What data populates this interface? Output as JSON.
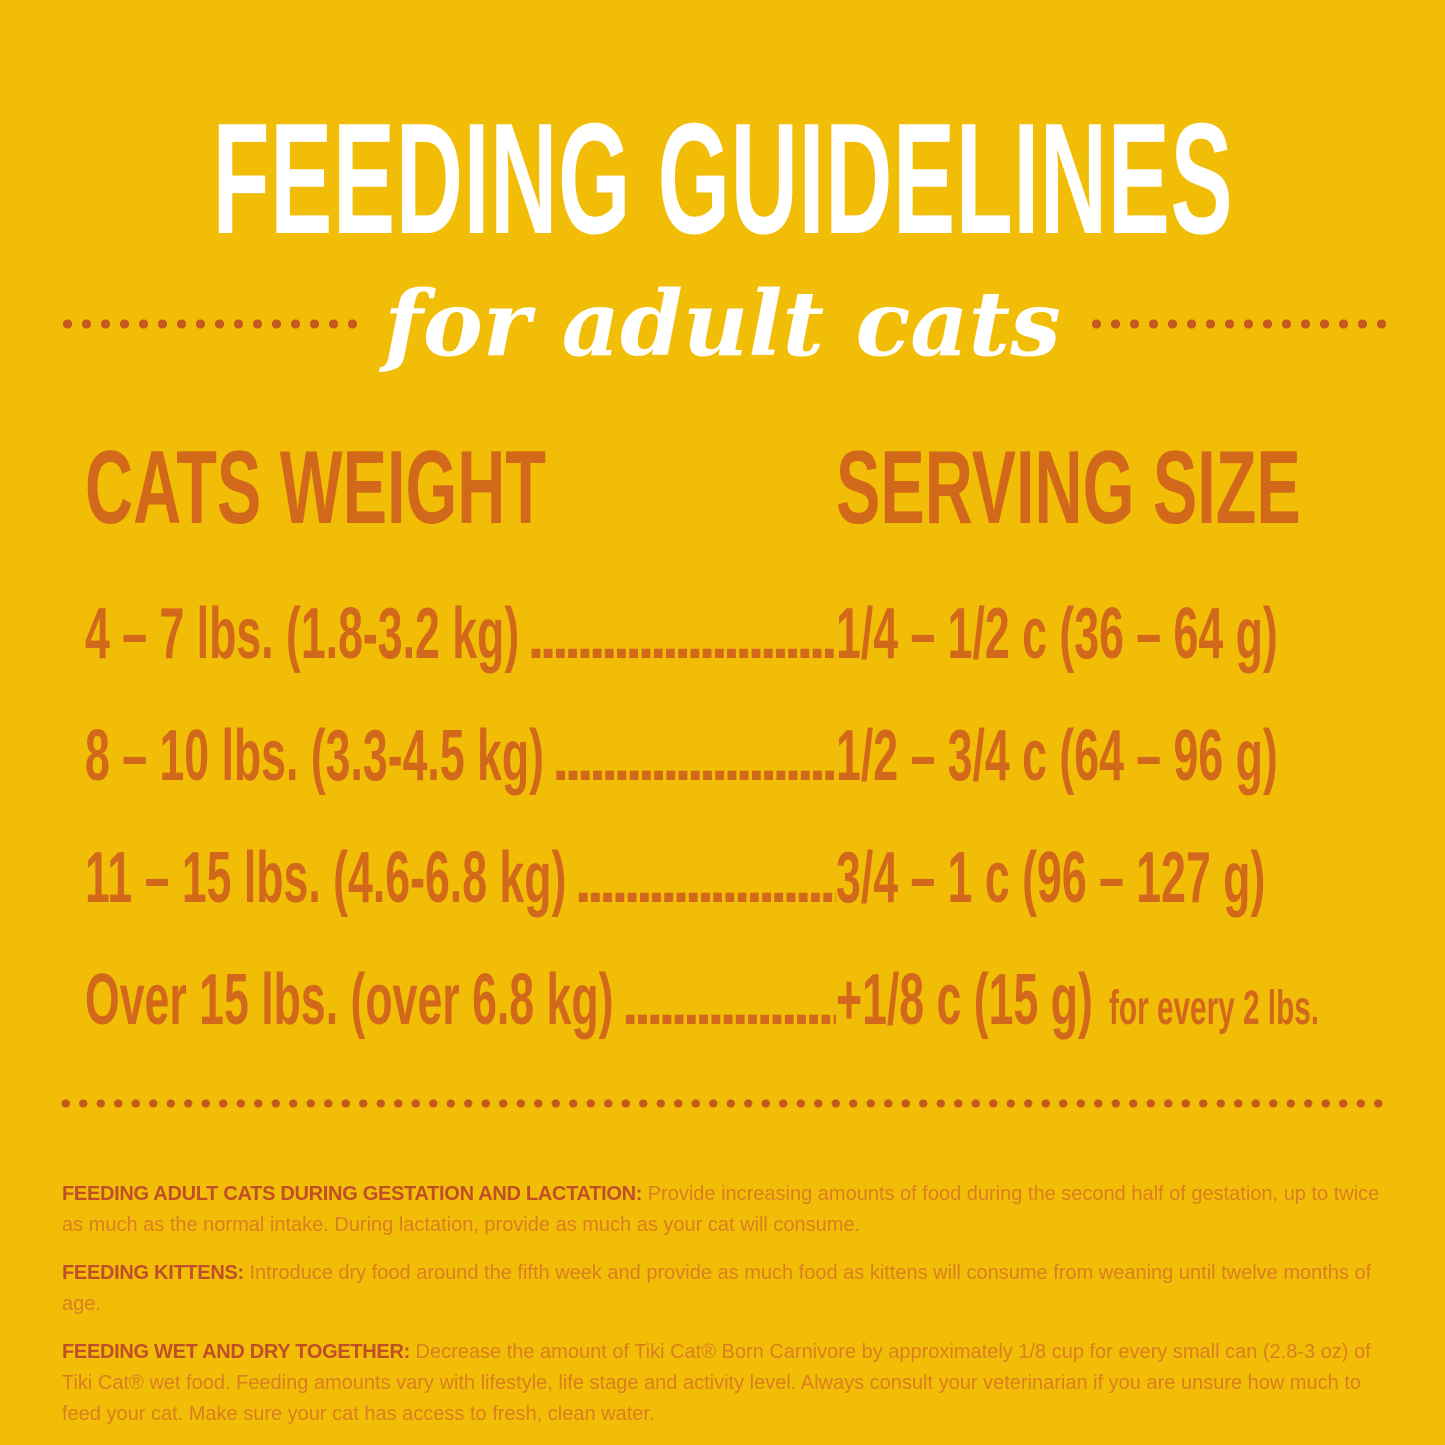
{
  "colors": {
    "background": "#F2BD07",
    "title_white": "#FFFFFF",
    "table_orange": "#D2681A",
    "dot_orange": "#C65A1E",
    "footer_label_red": "#C04F27",
    "footer_body_orange": "#DA7E20"
  },
  "title": "FEEDING GUIDELINES",
  "subtitle": "for adult cats",
  "table": {
    "col_weight_header": "CATS WEIGHT",
    "col_serving_header": "SERVING SIZE",
    "leader_dots": "................................................................................",
    "rows": [
      {
        "weight": "4 – 7 lbs. (1.8-3.2 kg)",
        "serving": "1/4 – 1/2 c (36 – 64 g)",
        "suffix": ""
      },
      {
        "weight": "8 – 10 lbs. (3.3-4.5 kg)",
        "serving": "1/2 – 3/4 c (64 – 96 g)",
        "suffix": ""
      },
      {
        "weight": "11 – 15 lbs. (4.6-6.8 kg)",
        "serving": "3/4 – 1 c (96 – 127 g)",
        "suffix": ""
      },
      {
        "weight": "Over 15 lbs. (over 6.8 kg)",
        "serving": "+1/8 c (15 g)",
        "suffix": "for every 2 lbs."
      }
    ]
  },
  "footer": {
    "paragraphs": [
      {
        "label": "FEEDING ADULT CATS DURING GESTATION AND LACTATION:",
        "text": "Provide increasing amounts of food during the second half of gestation, up to twice as much as the normal intake.  During lactation, provide as much as your cat will consume."
      },
      {
        "label": "FEEDING KITTENS:",
        "text": "Introduce dry food around the fifth week and provide as much food as kittens will consume from weaning until twelve months of age."
      },
      {
        "label": "FEEDING WET AND DRY TOGETHER:",
        "text": "Decrease the amount of Tiki Cat® Born Carnivore by approximately 1/8 cup for every small can (2.8-3 oz) of Tiki Cat® wet food. Feeding amounts vary with lifestyle, life stage and activity level.  Always consult your veterinarian if you are unsure how much to feed your cat. Make sure your cat has access to fresh, clean water."
      }
    ]
  }
}
